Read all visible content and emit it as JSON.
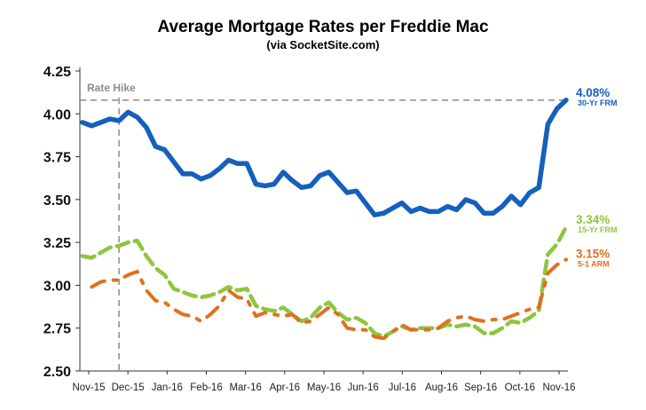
{
  "chart_data": {
    "type": "line",
    "title": "Average Mortgage Rates per Freddie Mac",
    "subtitle": "(via SocketSite.com)",
    "xlabel": "",
    "ylabel": "",
    "ylim": [
      2.5,
      4.25
    ],
    "yticks": [
      "2.50",
      "2.75",
      "3.00",
      "3.25",
      "3.50",
      "3.75",
      "4.00",
      "4.25"
    ],
    "xticks": [
      "Nov-15",
      "Dec-15",
      "Jan-16",
      "Feb-16",
      "Mar-16",
      "Apr-16",
      "May-16",
      "Jun-16",
      "Jul-16",
      "Aug-16",
      "Sep-16",
      "Oct-16",
      "Nov-16"
    ],
    "grid": false,
    "annotations": {
      "rate_hike_label": "Rate Hike",
      "rate_hike_week": 4,
      "reference_level": 4.08
    },
    "series": [
      {
        "name": "30-Yr FRM",
        "end_value": "4.08%",
        "color": "#1560bd",
        "style": "solid",
        "values": [
          3.95,
          3.93,
          3.95,
          3.97,
          3.96,
          4.01,
          3.98,
          3.92,
          3.81,
          3.79,
          3.72,
          3.65,
          3.65,
          3.62,
          3.64,
          3.68,
          3.73,
          3.71,
          3.71,
          3.59,
          3.58,
          3.59,
          3.66,
          3.61,
          3.57,
          3.58,
          3.64,
          3.66,
          3.6,
          3.54,
          3.55,
          3.48,
          3.41,
          3.42,
          3.45,
          3.48,
          3.43,
          3.45,
          3.43,
          3.43,
          3.46,
          3.44,
          3.5,
          3.48,
          3.42,
          3.42,
          3.46,
          3.52,
          3.47,
          3.54,
          3.57,
          3.94,
          4.03,
          4.08
        ]
      },
      {
        "name": "15-Yr FRM",
        "end_value": "3.34%",
        "color": "#8dc63f",
        "style": "dashed",
        "values": [
          3.17,
          3.16,
          3.19,
          3.22,
          3.23,
          3.25,
          3.26,
          3.17,
          3.1,
          3.06,
          2.98,
          2.96,
          2.94,
          2.93,
          2.94,
          2.96,
          2.99,
          2.97,
          2.98,
          2.88,
          2.86,
          2.85,
          2.87,
          2.83,
          2.79,
          2.81,
          2.87,
          2.9,
          2.84,
          2.8,
          2.81,
          2.78,
          2.72,
          2.7,
          2.73,
          2.76,
          2.74,
          2.75,
          2.75,
          2.75,
          2.77,
          2.76,
          2.77,
          2.76,
          2.72,
          2.72,
          2.75,
          2.79,
          2.78,
          2.81,
          2.85,
          3.18,
          3.24,
          3.34
        ]
      },
      {
        "name": "5-1 ARM",
        "end_value": "3.15%",
        "color": "#e07020",
        "style": "broken",
        "values": [
          null,
          2.99,
          3.02,
          3.03,
          3.03,
          3.06,
          3.08,
          2.97,
          2.91,
          2.9,
          2.86,
          2.83,
          2.82,
          2.79,
          2.83,
          2.88,
          2.97,
          2.93,
          2.92,
          2.82,
          2.84,
          2.83,
          2.82,
          2.83,
          2.78,
          2.79,
          2.83,
          2.87,
          2.83,
          2.75,
          2.74,
          2.74,
          2.7,
          2.69,
          2.73,
          2.77,
          2.74,
          2.74,
          2.74,
          2.75,
          2.79,
          2.81,
          2.82,
          2.8,
          2.79,
          2.8,
          2.8,
          2.82,
          2.84,
          2.86,
          2.87,
          3.07,
          3.12,
          3.15
        ]
      }
    ]
  }
}
